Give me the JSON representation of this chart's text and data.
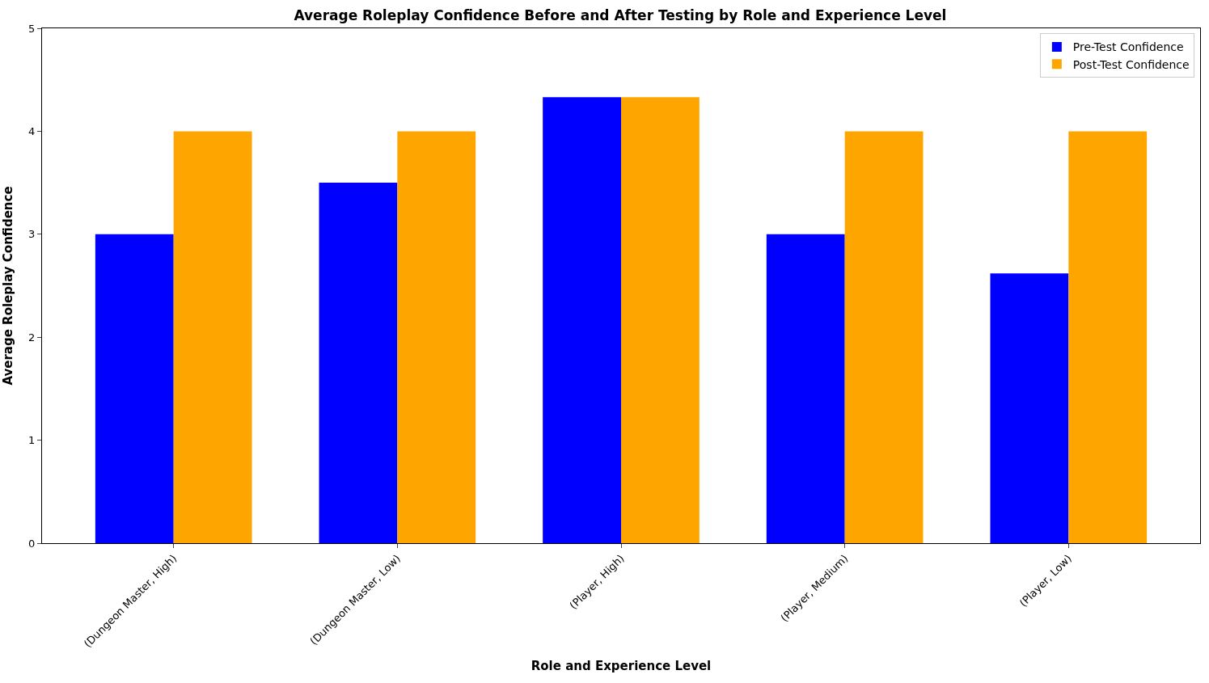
{
  "chart_data": {
    "type": "bar",
    "title": "Average Roleplay Confidence Before and After Testing by Role and Experience Level",
    "xlabel": "Role and Experience Level",
    "ylabel": "Average Roleplay Confidence",
    "categories": [
      "(Dungeon Master, High)",
      "(Dungeon Master, Low)",
      "(Player, High)",
      "(Player, Medium)",
      "(Player, Low)"
    ],
    "series": [
      {
        "name": "Pre-Test Confidence",
        "color": "#0000ff",
        "values": [
          3,
          3.5,
          4.33,
          3,
          2.62
        ]
      },
      {
        "name": "Post-Test Confidence",
        "color": "#ffa500",
        "values": [
          4,
          4,
          4.33,
          4,
          4
        ]
      }
    ],
    "ylim": [
      0,
      5
    ],
    "yticks": [
      0,
      1,
      2,
      3,
      4,
      5
    ],
    "legend": "top right"
  }
}
